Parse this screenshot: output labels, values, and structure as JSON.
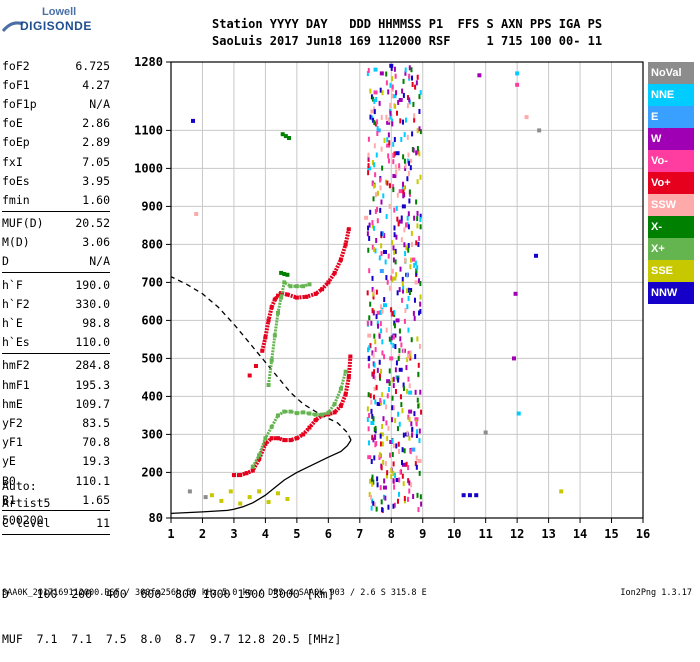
{
  "logo": {
    "line1": "Lowell",
    "line2": "DIGISONDE"
  },
  "header": {
    "row1": "Station YYYY DAY   DDD HHMMSS P1  FFS S AXN PPS IGA PS",
    "row2": "SaoLuis 2017 Jun18 169 112000 RSF     1 715 100 00- 11"
  },
  "params": [
    {
      "name": "foF2",
      "value": "6.725"
    },
    {
      "name": "foF1",
      "value": "4.27"
    },
    {
      "name": "foF1p",
      "value": "N/A"
    },
    {
      "name": "foE",
      "value": "2.86"
    },
    {
      "name": "foEp",
      "value": "2.89"
    },
    {
      "name": "fxI",
      "value": "7.05"
    },
    {
      "name": "foEs",
      "value": "3.95"
    },
    {
      "name": "fmin",
      "value": "1.60"
    },
    {
      "sep": true
    },
    {
      "name": "MUF(D)",
      "value": "20.52"
    },
    {
      "name": "M(D)",
      "value": "3.06"
    },
    {
      "name": "D",
      "value": "N/A"
    },
    {
      "sep": true
    },
    {
      "name": "h`F",
      "value": "190.0"
    },
    {
      "name": "h`F2",
      "value": "330.0"
    },
    {
      "name": "h`E",
      "value": "98.8"
    },
    {
      "name": "h`Es",
      "value": "110.0"
    },
    {
      "sep": true
    },
    {
      "name": "hmF2",
      "value": "284.8"
    },
    {
      "name": "hmF1",
      "value": "195.3"
    },
    {
      "name": "hmE",
      "value": "109.7"
    },
    {
      "name": "yF2",
      "value": "83.5"
    },
    {
      "name": "yF1",
      "value": "70.8"
    },
    {
      "name": "yE",
      "value": "19.3"
    },
    {
      "name": "B0",
      "value": "110.1"
    },
    {
      "name": "B1",
      "value": "1.65"
    },
    {
      "sep": true
    },
    {
      "name": "C-level",
      "value": "11"
    },
    {
      "sep": true
    }
  ],
  "autoscaling": {
    "line1": "Auto:",
    "line2": "Artist5",
    "line3": "500200"
  },
  "legend": [
    {
      "label": "NoVal",
      "color": "#8c8c8c"
    },
    {
      "label": "NNE",
      "color": "#00ccff"
    },
    {
      "label": "E",
      "color": "#3aa0ff"
    },
    {
      "label": "W",
      "color": "#a000b4"
    },
    {
      "label": "Vo-",
      "color": "#ff3ca0"
    },
    {
      "label": "Vo+",
      "color": "#e6001e"
    },
    {
      "label": "SSW",
      "color": "#ffaaaa"
    },
    {
      "label": "X-",
      "color": "#008000"
    },
    {
      "label": "X+",
      "color": "#64b450"
    },
    {
      "label": "SSE",
      "color": "#c8c800"
    },
    {
      "label": "NNW",
      "color": "#1400c8"
    }
  ],
  "muf_table": {
    "row1": "D    100  200  400  600  800 1000 1500 3000 [km]",
    "row2": "MUF  7.1  7.1  7.5  8.0  8.7  9.7 12.8 20.5 [MHz]"
  },
  "footer": {
    "left": "SAA0K_2017169112000.RSF / 300fx256h 50 kHz 5.0 km / DPS-4 SAA0K 903 / 2.6 S 315.8 E",
    "right": "Ion2Png 1.3.17"
  },
  "chart_data": {
    "type": "scatter",
    "title": "",
    "xlabel": "",
    "ylabel": "",
    "xlim": [
      1,
      16
    ],
    "ylim": [
      80,
      1280
    ],
    "x_ticks": [
      1,
      2,
      3,
      4,
      5,
      6,
      7,
      8,
      9,
      10,
      11,
      12,
      13,
      14,
      15,
      16
    ],
    "y_ticks": [
      80,
      200,
      300,
      400,
      500,
      600,
      700,
      800,
      900,
      1000,
      1100,
      1280
    ],
    "grid": true,
    "legend_placement": "right",
    "series": [
      {
        "name": "Vo+",
        "color": "#e6001e",
        "points": [
          [
            3.0,
            193
          ],
          [
            3.2,
            193
          ],
          [
            3.4,
            198
          ],
          [
            3.6,
            205
          ],
          [
            3.8,
            235
          ],
          [
            4.0,
            275
          ],
          [
            4.2,
            290
          ],
          [
            4.4,
            290
          ],
          [
            4.6,
            285
          ],
          [
            4.8,
            285
          ],
          [
            5.0,
            290
          ],
          [
            5.2,
            300
          ],
          [
            5.4,
            318
          ],
          [
            5.6,
            338
          ],
          [
            5.8,
            350
          ],
          [
            6.0,
            353
          ],
          [
            6.2,
            358
          ],
          [
            6.4,
            375
          ],
          [
            6.55,
            405
          ],
          [
            6.65,
            450
          ],
          [
            6.7,
            505
          ],
          [
            3.9,
            520
          ],
          [
            4.0,
            555
          ],
          [
            4.1,
            600
          ],
          [
            4.2,
            635
          ],
          [
            4.3,
            655
          ],
          [
            4.4,
            665
          ],
          [
            4.5,
            672
          ],
          [
            4.7,
            668
          ],
          [
            5.0,
            660
          ],
          [
            5.3,
            662
          ],
          [
            5.6,
            670
          ],
          [
            5.8,
            682
          ],
          [
            6.0,
            700
          ],
          [
            6.2,
            725
          ],
          [
            6.4,
            760
          ],
          [
            6.55,
            800
          ],
          [
            6.65,
            840
          ],
          [
            3.5,
            455
          ],
          [
            3.7,
            480
          ]
        ]
      },
      {
        "name": "X+",
        "color": "#64b450",
        "points": [
          [
            3.6,
            215
          ],
          [
            3.8,
            245
          ],
          [
            4.0,
            290
          ],
          [
            4.2,
            320
          ],
          [
            4.4,
            350
          ],
          [
            4.6,
            360
          ],
          [
            4.8,
            360
          ],
          [
            5.0,
            356
          ],
          [
            5.2,
            358
          ],
          [
            5.4,
            355
          ],
          [
            5.6,
            352
          ],
          [
            5.8,
            352
          ],
          [
            6.0,
            357
          ],
          [
            6.2,
            380
          ],
          [
            6.4,
            420
          ],
          [
            6.55,
            465
          ],
          [
            4.1,
            430
          ],
          [
            4.2,
            495
          ],
          [
            4.3,
            560
          ],
          [
            4.4,
            620
          ],
          [
            4.5,
            660
          ],
          [
            4.6,
            700
          ],
          [
            4.8,
            690
          ],
          [
            5.0,
            690
          ],
          [
            5.2,
            690
          ],
          [
            5.4,
            695
          ]
        ]
      },
      {
        "name": "X-",
        "color": "#008000",
        "points": [
          [
            4.5,
            725
          ],
          [
            4.6,
            722
          ],
          [
            4.7,
            720
          ],
          [
            4.55,
            1090
          ],
          [
            4.65,
            1085
          ],
          [
            4.75,
            1080
          ]
        ]
      },
      {
        "name": "W",
        "color": "#a000b4",
        "points": [
          [
            7.7,
            1250
          ],
          [
            7.9,
            1120
          ],
          [
            8.1,
            980
          ],
          [
            8.3,
            860
          ],
          [
            8.5,
            720
          ],
          [
            8.2,
            600
          ],
          [
            8.4,
            520
          ],
          [
            7.9,
            440
          ],
          [
            8.6,
            360
          ],
          [
            8.0,
            280
          ],
          [
            8.4,
            220
          ],
          [
            7.8,
            160
          ],
          [
            8.3,
            1180
          ],
          [
            10.8,
            1245
          ],
          [
            11.9,
            500
          ],
          [
            11.95,
            670
          ]
        ]
      },
      {
        "name": "NNW",
        "color": "#1400c8",
        "points": [
          [
            8.0,
            1270
          ],
          [
            8.2,
            1040
          ],
          [
            8.4,
            900
          ],
          [
            7.8,
            780
          ],
          [
            8.6,
            680
          ],
          [
            8.1,
            560
          ],
          [
            8.3,
            470
          ],
          [
            7.6,
            380
          ],
          [
            8.5,
            300
          ],
          [
            8.2,
            180
          ],
          [
            10.3,
            140
          ],
          [
            10.5,
            140
          ],
          [
            10.7,
            140
          ],
          [
            12.6,
            770
          ],
          [
            1.7,
            1125
          ]
        ]
      },
      {
        "name": "NNE",
        "color": "#00ccff",
        "points": [
          [
            7.5,
            1260
          ],
          [
            8.1,
            1190
          ],
          [
            7.3,
            1000
          ],
          [
            8.5,
            850
          ],
          [
            7.8,
            640
          ],
          [
            8.6,
            410
          ],
          [
            7.4,
            330
          ],
          [
            12.0,
            1250
          ],
          [
            12.05,
            355
          ]
        ]
      },
      {
        "name": "E",
        "color": "#3aa0ff",
        "points": [
          [
            7.6,
            1100
          ],
          [
            8.4,
            950
          ],
          [
            7.7,
            730
          ],
          [
            8.2,
            450
          ],
          [
            8.7,
            260
          ]
        ]
      },
      {
        "name": "Vo-",
        "color": "#ff3ca0",
        "points": [
          [
            7.5,
            1200
          ],
          [
            7.9,
            1060
          ],
          [
            8.3,
            940
          ],
          [
            8.7,
            760
          ],
          [
            7.6,
            620
          ],
          [
            8.0,
            500
          ],
          [
            8.8,
            340
          ],
          [
            7.3,
            240
          ],
          [
            12.0,
            1220
          ]
        ]
      },
      {
        "name": "SSW",
        "color": "#ffaaaa",
        "points": [
          [
            7.4,
            1150
          ],
          [
            8.6,
            1020
          ],
          [
            7.2,
            870
          ],
          [
            8.8,
            700
          ],
          [
            7.3,
            560
          ],
          [
            7.5,
            420
          ],
          [
            8.9,
            230
          ],
          [
            1.8,
            880
          ],
          [
            12.3,
            1135
          ]
        ]
      },
      {
        "name": "SSE",
        "color": "#c8c800",
        "points": [
          [
            2.3,
            140
          ],
          [
            2.6,
            125
          ],
          [
            2.9,
            150
          ],
          [
            3.2,
            118
          ],
          [
            3.5,
            135
          ],
          [
            3.8,
            150
          ],
          [
            4.1,
            122
          ],
          [
            4.4,
            145
          ],
          [
            4.7,
            130
          ],
          [
            8.1,
            710
          ],
          [
            7.7,
            300
          ],
          [
            13.4,
            150
          ]
        ]
      },
      {
        "name": "NoVal",
        "color": "#8c8c8c",
        "points": [
          [
            11.0,
            305
          ],
          [
            12.7,
            1100
          ],
          [
            1.6,
            150
          ],
          [
            2.1,
            135
          ]
        ]
      }
    ],
    "profile_curve": {
      "color": "#000000",
      "points": [
        [
          1,
          92
        ],
        [
          2,
          96
        ],
        [
          2.8,
          100
        ],
        [
          3.0,
          103
        ],
        [
          3.3,
          110
        ],
        [
          3.6,
          120
        ],
        [
          4.0,
          140
        ],
        [
          4.3,
          160
        ],
        [
          4.6,
          180
        ],
        [
          5.0,
          200
        ],
        [
          5.5,
          220
        ],
        [
          6.0,
          240
        ],
        [
          6.4,
          255
        ],
        [
          6.6,
          270
        ],
        [
          6.72,
          285
        ]
      ]
    },
    "extrapolation_curve": {
      "color": "#000000",
      "style": "dashed",
      "points": [
        [
          6.72,
          285
        ],
        [
          6.6,
          305
        ],
        [
          6.3,
          330
        ],
        [
          5.8,
          350
        ],
        [
          5.2,
          380
        ],
        [
          4.8,
          410
        ],
        [
          4.4,
          450
        ],
        [
          4.0,
          490
        ],
        [
          3.5,
          540
        ],
        [
          3.0,
          590
        ],
        [
          2.5,
          635
        ],
        [
          2.0,
          670
        ],
        [
          1.5,
          695
        ],
        [
          1.0,
          715
        ]
      ]
    }
  }
}
